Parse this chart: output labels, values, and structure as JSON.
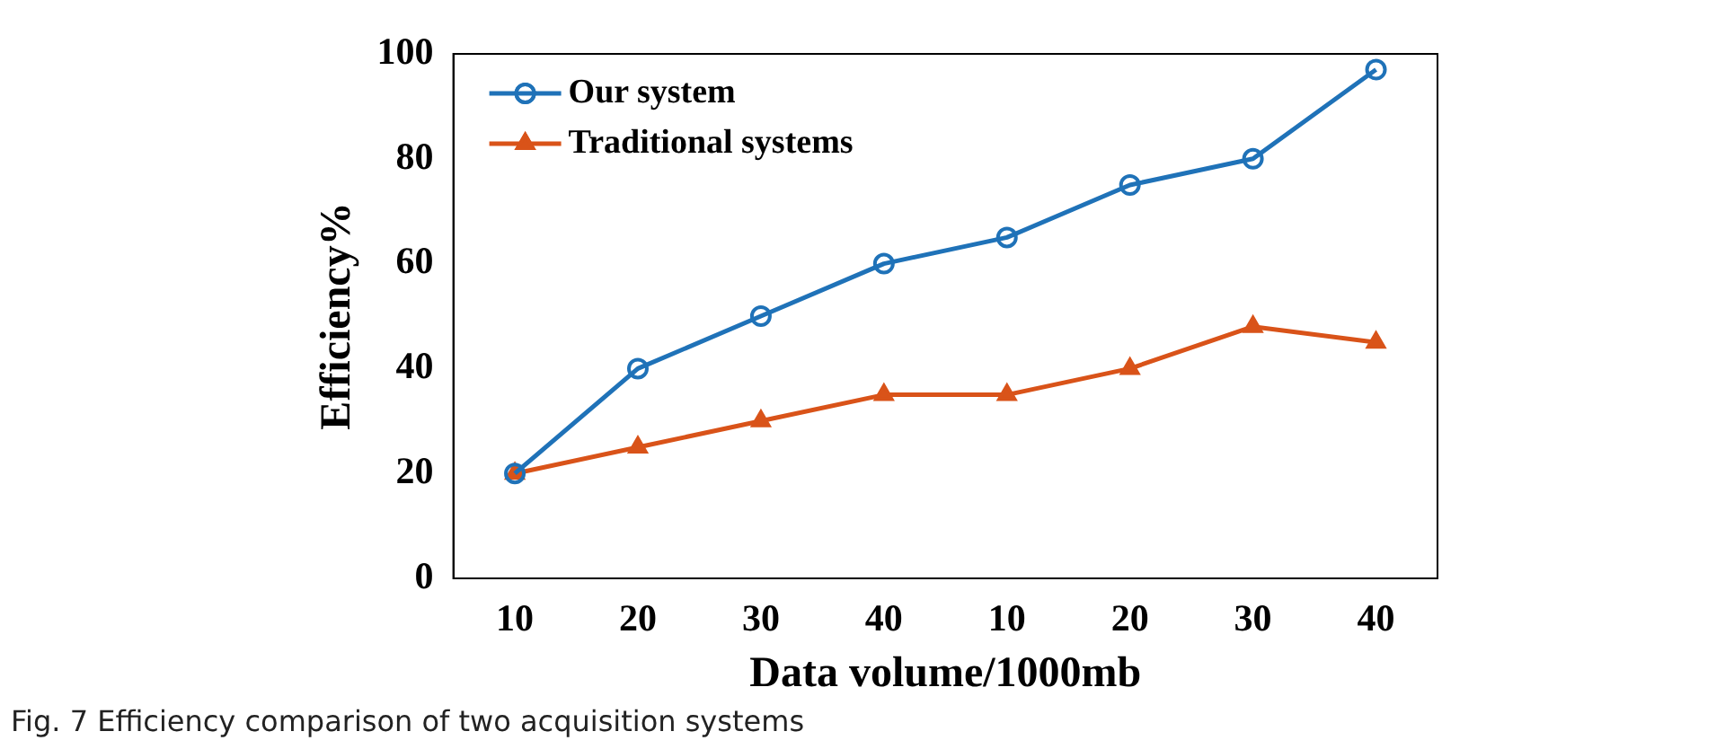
{
  "chart_data": {
    "type": "line",
    "xlabel": "Data volume/1000mb",
    "ylabel": "Efficiency%",
    "categories": [
      "10",
      "20",
      "30",
      "40",
      "10",
      "20",
      "30",
      "40"
    ],
    "series": [
      {
        "name": "Our system",
        "color": "#1f72b8",
        "marker": "circle",
        "values": [
          20,
          40,
          50,
          60,
          65,
          75,
          80,
          97
        ]
      },
      {
        "name": "Traditional systems",
        "color": "#d95319",
        "marker": "triangle",
        "values": [
          20,
          25,
          30,
          35,
          35,
          40,
          48,
          45
        ]
      }
    ],
    "ylim": [
      0,
      100
    ],
    "yticks": [
      0,
      20,
      40,
      60,
      80,
      100
    ],
    "grid": false,
    "legend": "top left",
    "line_style": "solid",
    "annotations": [
      "Fig. 7  Efficiency comparison of two acquisition systems"
    ]
  }
}
